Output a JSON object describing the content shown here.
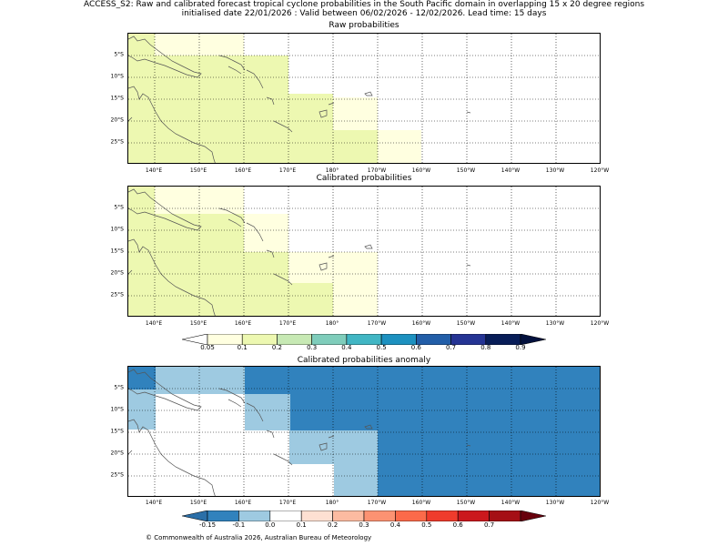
{
  "header": {
    "line1": "ACCESS_S2: Raw and calibrated forecast tropical cyclone probabilities in the South Pacific domain in overlapping 15 x 20 degree regions",
    "line2": "initialised date 22/01/2026 :  Valid between 06/02/2026 - 12/02/2026. Lead time: 15 days"
  },
  "panels": [
    {
      "title": "Raw probabilities"
    },
    {
      "title": "Calibrated probabilities"
    },
    {
      "title": "Calibrated probabilities anomaly"
    }
  ],
  "x_tick_labels": [
    "140°E",
    "150°E",
    "160°E",
    "170°E",
    "180°",
    "170°W",
    "160°W",
    "150°W",
    "140°W",
    "130°W",
    "120°W"
  ],
  "y_tick_labels": [
    "5°S",
    "10°S",
    "15°S",
    "20°S",
    "25°S"
  ],
  "colorbars": [
    {
      "labels": [
        "0.05",
        "0.1",
        "0.2",
        "0.3",
        "0.4",
        "0.5",
        "0.6",
        "0.7",
        "0.8",
        "0.9"
      ],
      "colors": [
        "#ffffe0",
        "#edf8b1",
        "#c7e9b4",
        "#7fcdbb",
        "#41b6c4",
        "#1d91c0",
        "#225ea8",
        "#253494",
        "#081d58"
      ],
      "under_color": "#ffffff",
      "over_color": "#03113d"
    },
    {
      "labels": [
        "-0.15",
        "-0.1",
        "0.0",
        "0.1",
        "0.2",
        "0.3",
        "0.4",
        "0.5",
        "0.6",
        "0.7"
      ],
      "colors": [
        "#3182bd",
        "#9ecae1",
        "#ffffff",
        "#fee0d2",
        "#fcbba1",
        "#fc9272",
        "#fb6a4a",
        "#ef3b2c",
        "#cb181d",
        "#a50f15"
      ],
      "under_color": "#2b6fa8",
      "over_color": "#67000d"
    }
  ],
  "copyright": "© Commonwealth of Australia 2026, Australian Bureau of Meteorology",
  "map_colors": {
    "pale_yellow": "#ffffe0",
    "light_green": "#edf8b1",
    "light_blue": "#9ecae1",
    "mid_blue": "#3182bd",
    "coast": "#555555"
  }
}
